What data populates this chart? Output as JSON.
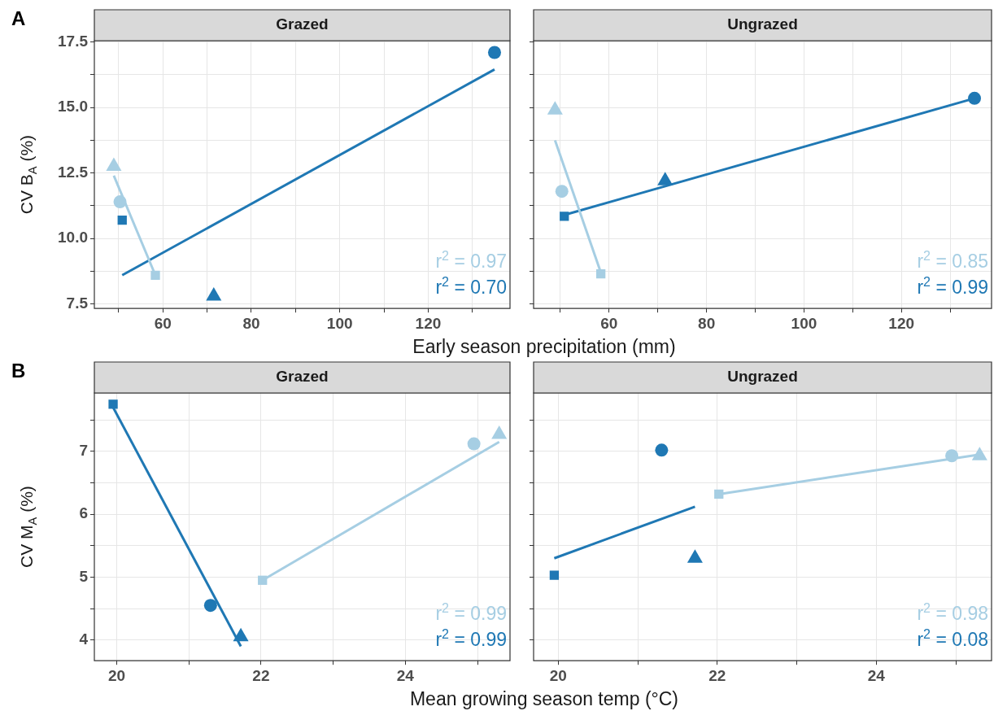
{
  "chart_data": [
    {
      "type": "scatter",
      "title": "Grazed",
      "subtitle": "A",
      "xlabel": "Early season precipitation (mm)",
      "ylabel": "CV B$_{A}$ (%)",
      "xlim": [
        44.5,
        138.5
      ],
      "ylim": [
        7.33,
        17.55
      ],
      "xticks": [
        {
          "value": 50,
          "label": null
        },
        60,
        {
          "value": 70,
          "label": null
        },
        80,
        {
          "value": 90,
          "label": null
        },
        100,
        {
          "value": 110,
          "label": null
        },
        120,
        {
          "value": 130,
          "label": null
        }
      ],
      "yticks": [
        7.5,
        {
          "value": 8.75,
          "label": null
        },
        {
          "value": 10,
          "label": "10.0"
        },
        {
          "value": 11.25,
          "label": null
        },
        12.5,
        {
          "value": 13.75,
          "label": null
        },
        {
          "value": 15,
          "label": "15.0"
        },
        {
          "value": 16.25,
          "label": null
        },
        17.5
      ],
      "grid": true,
      "legend": false,
      "annotations": [
        "r$^{2}$ = 0.97",
        "r$^{2}$ = 0.70"
      ],
      "series": [
        {
          "type": "line",
          "color": "#a6cee3",
          "x": [
            48.9,
            58.3
          ],
          "values": [
            12.4,
            8.6
          ],
          "marker": "none"
        },
        {
          "type": "line",
          "color": "#1f78b4",
          "x": [
            50.8,
            135
          ],
          "values": [
            8.6,
            16.45
          ],
          "marker": "none"
        },
        {
          "type": "scatter",
          "color": "#a6cee3",
          "marker": "triangle",
          "x": [
            48.9
          ],
          "values": [
            12.75
          ]
        },
        {
          "type": "scatter",
          "color": "#a6cee3",
          "marker": "circle",
          "x": [
            50.3
          ],
          "values": [
            11.4
          ]
        },
        {
          "type": "scatter",
          "color": "#a6cee3",
          "marker": "square",
          "x": [
            58.3
          ],
          "values": [
            8.6
          ]
        },
        {
          "type": "scatter",
          "color": "#1f78b4",
          "marker": "square",
          "x": [
            50.8
          ],
          "values": [
            10.7
          ]
        },
        {
          "type": "scatter",
          "color": "#1f78b4",
          "marker": "triangle",
          "x": [
            71.5
          ],
          "values": [
            7.8
          ]
        },
        {
          "type": "scatter",
          "color": "#1f78b4",
          "marker": "circle",
          "x": [
            135
          ],
          "values": [
            17.1
          ]
        }
      ]
    },
    {
      "type": "scatter",
      "title": "Ungrazed",
      "xlim": [
        44.5,
        138.5
      ],
      "ylim": [
        7.33,
        17.55
      ],
      "tick_labels": "x",
      "xticks": [
        {
          "value": 50,
          "label": null
        },
        60,
        {
          "value": 70,
          "label": null
        },
        80,
        {
          "value": 90,
          "label": null
        },
        100,
        {
          "value": 110,
          "label": null
        },
        120,
        {
          "value": 130,
          "label": null
        }
      ],
      "yticks": [
        7.5,
        8.75,
        10,
        11.25,
        12.5,
        13.75,
        15,
        16.25,
        17.5
      ],
      "grid": true,
      "legend": false,
      "annotations": [
        "r$^{2}$ = 0.85",
        "r$^{2}$ = 0.99"
      ],
      "series": [
        {
          "type": "line",
          "color": "#a6cee3",
          "x": [
            48.9,
            58.3
          ],
          "values": [
            13.75,
            8.7
          ],
          "marker": "none"
        },
        {
          "type": "line",
          "color": "#1f78b4",
          "x": [
            50.8,
            135
          ],
          "values": [
            10.9,
            15.35
          ],
          "marker": "none"
        },
        {
          "type": "scatter",
          "color": "#a6cee3",
          "marker": "triangle",
          "x": [
            48.9
          ],
          "values": [
            14.9
          ]
        },
        {
          "type": "scatter",
          "color": "#a6cee3",
          "marker": "circle",
          "x": [
            50.3
          ],
          "values": [
            11.8
          ]
        },
        {
          "type": "scatter",
          "color": "#a6cee3",
          "marker": "square",
          "x": [
            58.3
          ],
          "values": [
            8.65
          ]
        },
        {
          "type": "scatter",
          "color": "#1f78b4",
          "marker": "square",
          "x": [
            50.8
          ],
          "values": [
            10.85
          ]
        },
        {
          "type": "scatter",
          "color": "#1f78b4",
          "marker": "triangle",
          "x": [
            71.5
          ],
          "values": [
            12.2
          ]
        },
        {
          "type": "scatter",
          "color": "#1f78b4",
          "marker": "circle",
          "x": [
            135
          ],
          "values": [
            15.35
          ]
        }
      ]
    },
    {
      "type": "scatter",
      "title": "Grazed",
      "subtitle": "B",
      "xlabel": "Mean growing season temp (°C)",
      "ylabel": "CV M$_{A}$ (%)",
      "xlim": [
        19.69,
        25.45
      ],
      "ylim": [
        3.67,
        7.93
      ],
      "xticks": [
        20,
        {
          "value": 21,
          "label": null
        },
        22,
        {
          "value": 23,
          "label": null
        },
        24,
        {
          "value": 25,
          "label": null
        }
      ],
      "yticks": [
        4,
        {
          "value": 4.5,
          "label": null
        },
        5,
        {
          "value": 5.5,
          "label": null
        },
        6,
        {
          "value": 6.5,
          "label": null
        },
        7,
        {
          "value": 7.5,
          "label": null
        }
      ],
      "grid": true,
      "legend": false,
      "annotations": [
        "r$^{2}$ = 0.99",
        "r$^{2}$ = 0.99"
      ],
      "series": [
        {
          "type": "line",
          "color": "#a6cee3",
          "x": [
            22.02,
            25.3
          ],
          "values": [
            4.95,
            7.15
          ],
          "marker": "none"
        },
        {
          "type": "line",
          "color": "#1f78b4",
          "x": [
            19.95,
            21.72
          ],
          "values": [
            7.7,
            3.9
          ],
          "marker": "none"
        },
        {
          "type": "scatter",
          "color": "#a6cee3",
          "marker": "square",
          "x": [
            22.02
          ],
          "values": [
            4.95
          ]
        },
        {
          "type": "scatter",
          "color": "#a6cee3",
          "marker": "circle",
          "x": [
            24.95
          ],
          "values": [
            7.12
          ]
        },
        {
          "type": "scatter",
          "color": "#a6cee3",
          "marker": "triangle",
          "x": [
            25.3
          ],
          "values": [
            7.27
          ]
        },
        {
          "type": "scatter",
          "color": "#1f78b4",
          "marker": "square",
          "x": [
            19.95
          ],
          "values": [
            7.75
          ]
        },
        {
          "type": "scatter",
          "color": "#1f78b4",
          "marker": "circle",
          "x": [
            21.3
          ],
          "values": [
            4.55
          ]
        },
        {
          "type": "scatter",
          "color": "#1f78b4",
          "marker": "triangle",
          "x": [
            21.72
          ],
          "values": [
            4.05
          ]
        }
      ]
    },
    {
      "type": "scatter",
      "title": "Ungrazed",
      "xlim": [
        19.69,
        25.45
      ],
      "ylim": [
        3.67,
        7.93
      ],
      "tick_labels": "x",
      "xticks": [
        20,
        {
          "value": 21,
          "label": null
        },
        22,
        {
          "value": 23,
          "label": null
        },
        24,
        {
          "value": 25,
          "label": null
        }
      ],
      "yticks": [
        4,
        {
          "value": 4.5,
          "label": null
        },
        5,
        {
          "value": 5.5,
          "label": null
        },
        6,
        {
          "value": 6.5,
          "label": null
        },
        7,
        {
          "value": 7.5,
          "label": null
        }
      ],
      "grid": true,
      "legend": false,
      "annotations": [
        "r$^{2}$ = 0.98",
        "r$^{2}$ = 0.08"
      ],
      "series": [
        {
          "type": "line",
          "color": "#a6cee3",
          "x": [
            22.02,
            25.3
          ],
          "values": [
            6.32,
            6.95
          ],
          "marker": "none"
        },
        {
          "type": "line",
          "color": "#1f78b4",
          "x": [
            19.95,
            21.72
          ],
          "values": [
            5.3,
            6.12
          ],
          "marker": "none"
        },
        {
          "type": "scatter",
          "color": "#a6cee3",
          "marker": "square",
          "x": [
            22.02
          ],
          "values": [
            6.32
          ]
        },
        {
          "type": "scatter",
          "color": "#a6cee3",
          "marker": "circle",
          "x": [
            24.95
          ],
          "values": [
            6.93
          ]
        },
        {
          "type": "scatter",
          "color": "#a6cee3",
          "marker": "triangle",
          "x": [
            25.3
          ],
          "values": [
            6.93
          ]
        },
        {
          "type": "scatter",
          "color": "#1f78b4",
          "marker": "square",
          "x": [
            19.95
          ],
          "values": [
            5.03
          ]
        },
        {
          "type": "scatter",
          "color": "#1f78b4",
          "marker": "circle",
          "x": [
            21.3
          ],
          "values": [
            7.02
          ]
        },
        {
          "type": "scatter",
          "color": "#1f78b4",
          "marker": "triangle",
          "x": [
            21.72
          ],
          "values": [
            5.3
          ]
        }
      ]
    }
  ]
}
